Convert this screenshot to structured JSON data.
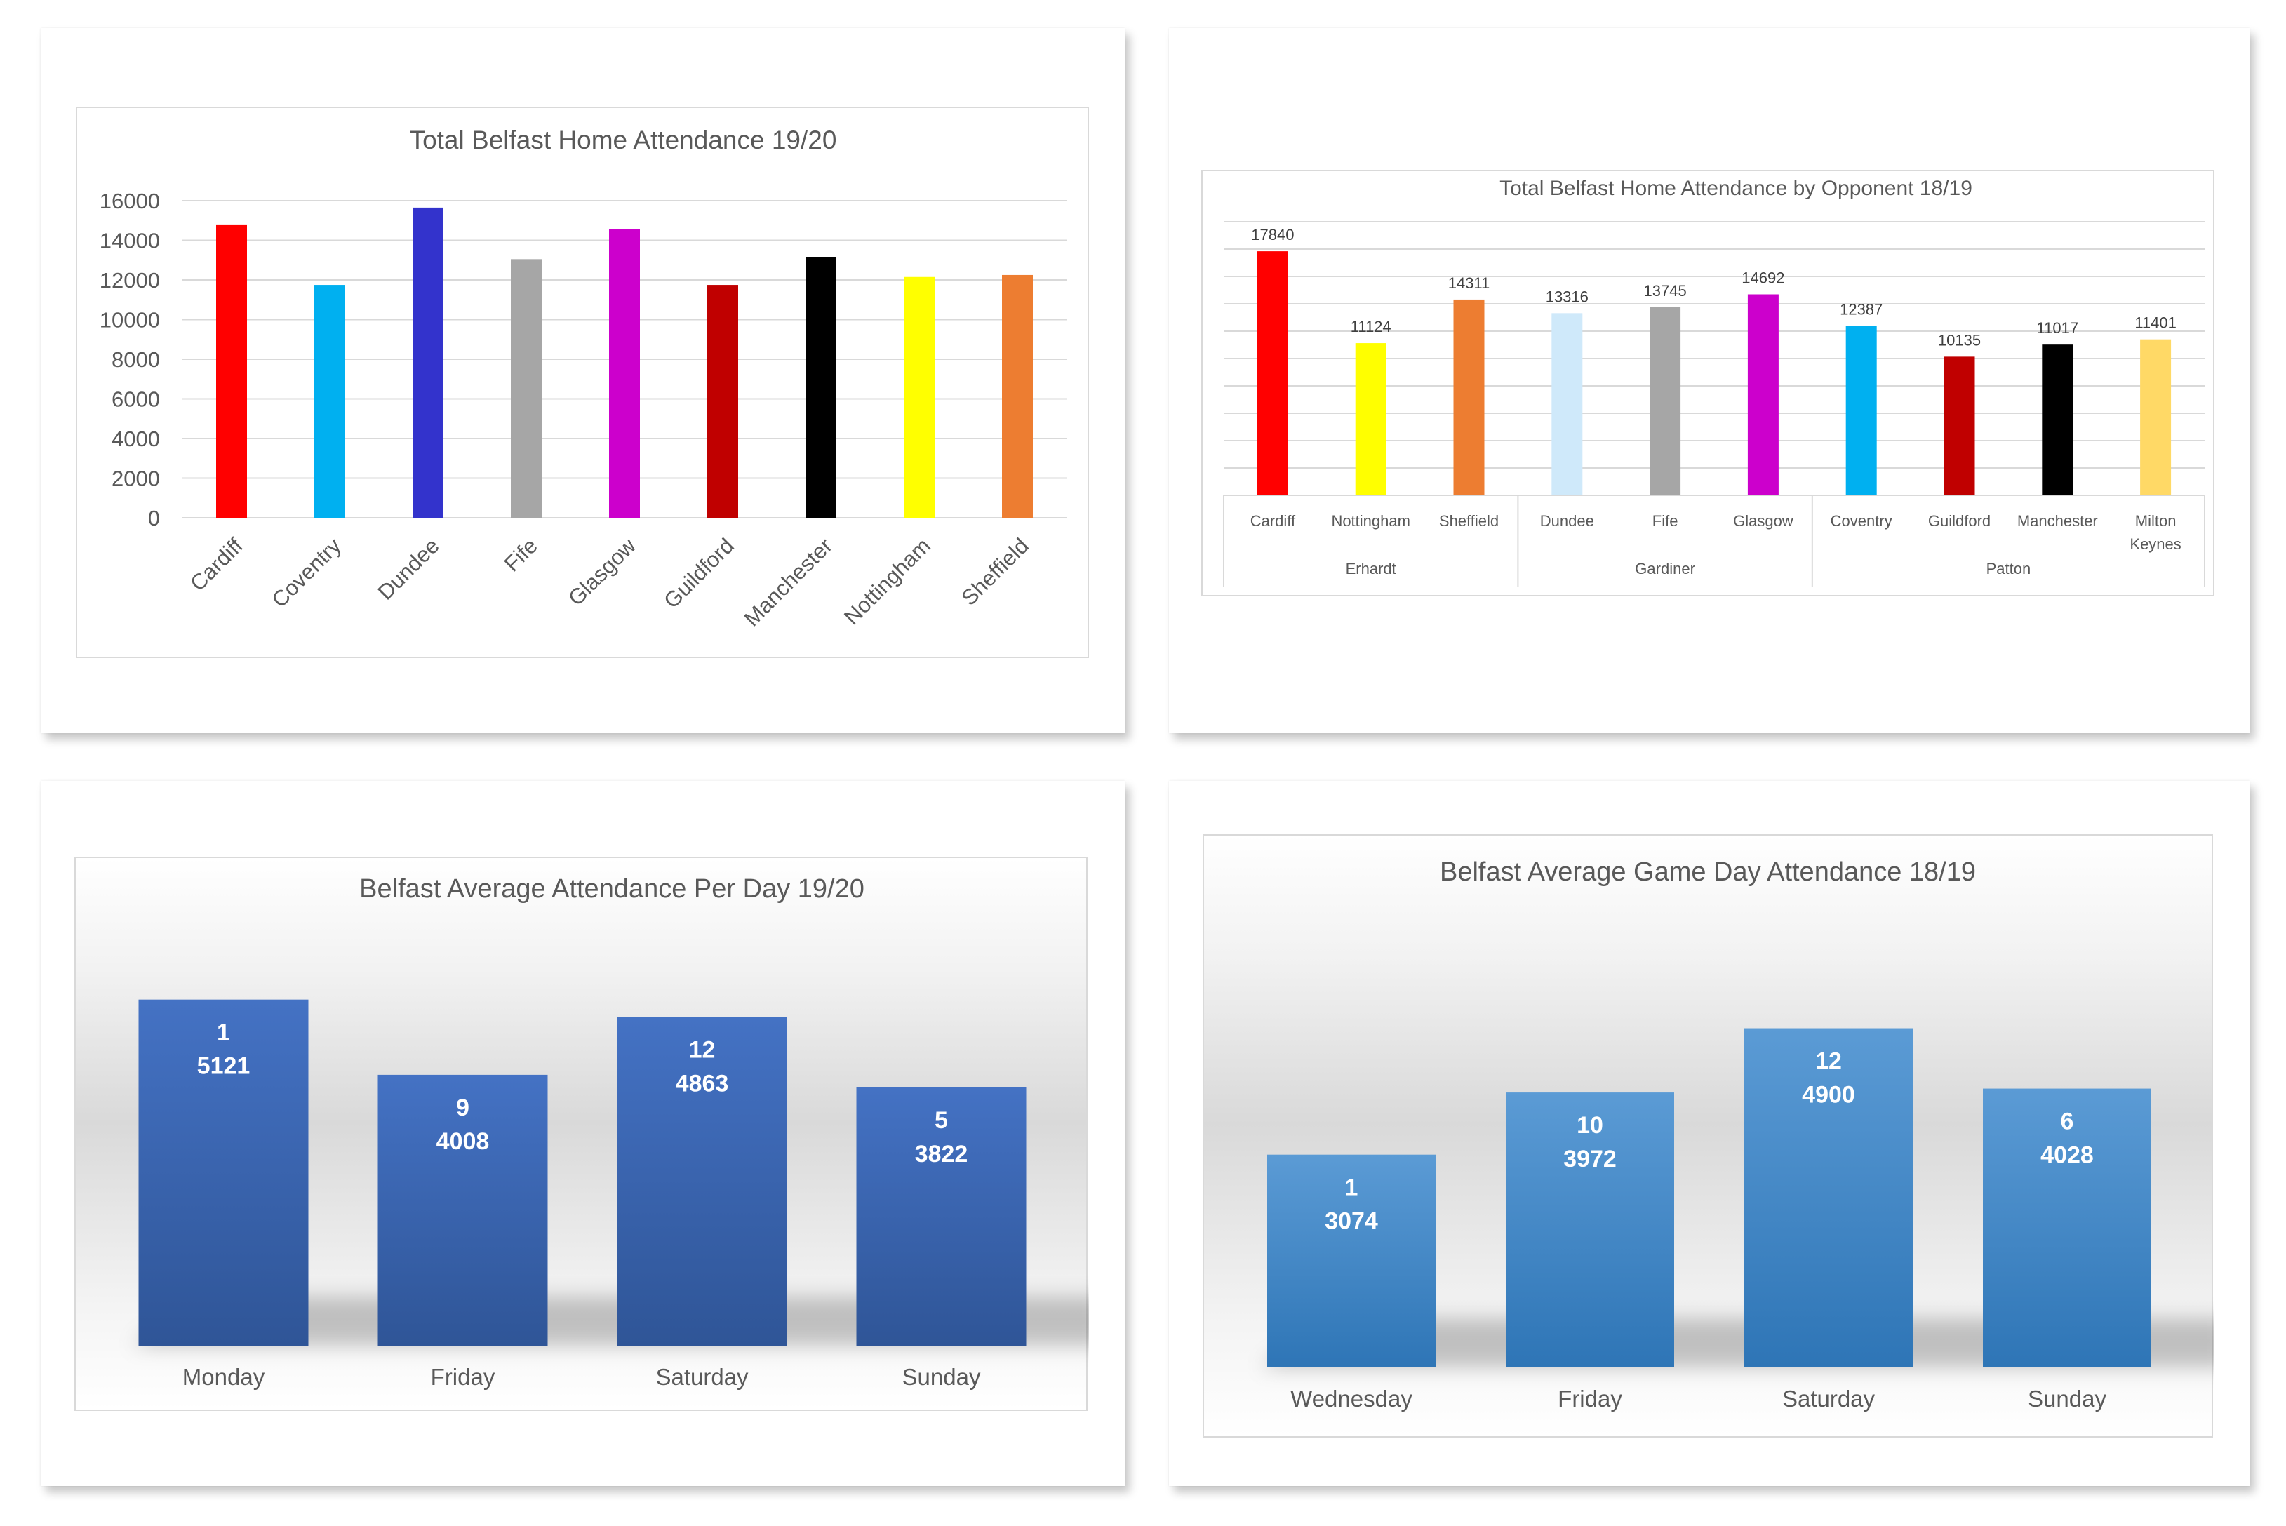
{
  "chart_data": [
    {
      "type": "bar",
      "title": "Total Belfast Home Attendance 19/20",
      "categories": [
        "Cardiff",
        "Coventry",
        "Dundee",
        "Fife",
        "Glasgow",
        "Guildford",
        "Manchester",
        "Nottingham",
        "Sheffield"
      ],
      "values": [
        14800,
        11750,
        15650,
        13050,
        14550,
        11750,
        13150,
        12150,
        12250
      ],
      "colors": [
        "#ff0000",
        "#00b0f0",
        "#3333cc",
        "#a6a6a6",
        "#cc00cc",
        "#c00000",
        "#000000",
        "#ffff00",
        "#ed7d31"
      ],
      "y_ticks": [
        "16000",
        "14000",
        "12000",
        "10000",
        "8000",
        "6000",
        "4000",
        "2000",
        "0"
      ],
      "ylim": [
        0,
        16000
      ],
      "grid": true,
      "xlabel": "",
      "ylabel": ""
    },
    {
      "type": "bar",
      "title": "Total Belfast Home Attendance by Opponent 18/19",
      "categories": [
        "Cardiff",
        "Nottingham",
        "Sheffield",
        "Dundee",
        "Fife",
        "Glasgow",
        "Coventry",
        "Guildford",
        "Manchester",
        "Milton Keynes"
      ],
      "category_lines": [
        [
          "Cardiff"
        ],
        [
          "Nottingham"
        ],
        [
          "Sheffield"
        ],
        [
          "Dundee"
        ],
        [
          "Fife"
        ],
        [
          "Glasgow"
        ],
        [
          "Coventry"
        ],
        [
          "Guildford"
        ],
        [
          "Manchester"
        ],
        [
          "Milton",
          "Keynes"
        ]
      ],
      "values": [
        17840,
        11124,
        14311,
        13316,
        13745,
        14692,
        12387,
        10135,
        11017,
        11401
      ],
      "data_labels": [
        "17840",
        "11124",
        "14311",
        "13316",
        "13745",
        "14692",
        "12387",
        "10135",
        "11017",
        "11401"
      ],
      "colors": [
        "#ff0000",
        "#ffff00",
        "#ed7d31",
        "#cfe9fa",
        "#a6a6a6",
        "#cc00cc",
        "#00b0f0",
        "#c00000",
        "#000000",
        "#ffd966"
      ],
      "groups": [
        {
          "name": "Erhardt",
          "count": 3
        },
        {
          "name": "Gardiner",
          "count": 3
        },
        {
          "name": "Patton",
          "count": 4
        }
      ],
      "ylim": [
        0,
        20000
      ],
      "grid": true
    },
    {
      "type": "bar",
      "title": "Belfast Average Attendance Per Day 19/20",
      "categories": [
        "Monday",
        "Friday",
        "Saturday",
        "Sunday"
      ],
      "games": [
        "1",
        "9",
        "12",
        "5"
      ],
      "values": [
        5121,
        4008,
        4863,
        3822
      ],
      "data_labels": [
        "5121",
        "4008",
        "4863",
        "3822"
      ],
      "color": "#4472c4",
      "ylim": [
        0,
        6000
      ]
    },
    {
      "type": "bar",
      "title": "Belfast Average Game Day Attendance 18/19",
      "categories": [
        "Wednesday",
        "Friday",
        "Saturday",
        "Sunday"
      ],
      "games": [
        "1",
        "10",
        "12",
        "6"
      ],
      "values": [
        3074,
        3972,
        4900,
        4028
      ],
      "data_labels": [
        "3074",
        "3972",
        "4900",
        "4028"
      ],
      "color": "#5b9bd5",
      "ylim": [
        0,
        6000
      ]
    }
  ]
}
